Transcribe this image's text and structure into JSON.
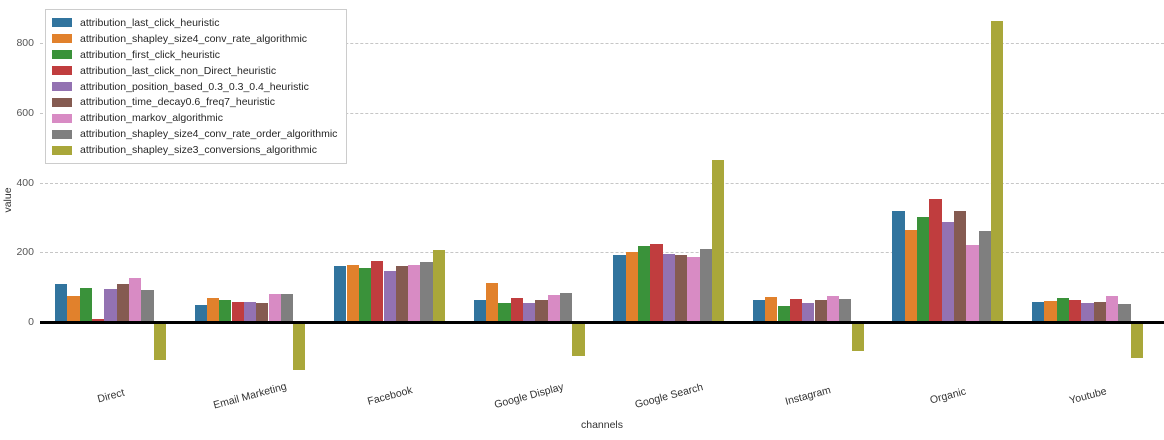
{
  "chart_data": {
    "type": "bar",
    "title": "",
    "xlabel": "channels",
    "ylabel": "value",
    "ylim": [
      -150,
      900
    ],
    "yticks": [
      0,
      200,
      400,
      600,
      800
    ],
    "grid": "horizontal-dashed",
    "legend_position": "upper-left",
    "categories": [
      "Direct",
      "Email Marketing",
      "Facebook",
      "Google Display",
      "Google Search",
      "Instagram",
      "Organic",
      "Youtube"
    ],
    "series": [
      {
        "name": "attribution_last_click_heuristic",
        "color": "#31749e",
        "values": [
          110,
          50,
          160,
          63,
          192,
          62,
          318,
          57
        ]
      },
      {
        "name": "attribution_shapley_size4_conv_rate_algorithmic",
        "color": "#e1812c",
        "values": [
          74,
          68,
          164,
          111,
          201,
          71,
          265,
          60
        ]
      },
      {
        "name": "attribution_first_click_heuristic",
        "color": "#3a923a",
        "values": [
          97,
          64,
          155,
          54,
          218,
          46,
          300,
          69
        ]
      },
      {
        "name": "attribution_last_click_non_Direct_heuristic",
        "color": "#c03d3e",
        "values": [
          8,
          57,
          175,
          69,
          225,
          65,
          352,
          62
        ]
      },
      {
        "name": "attribution_position_based_0.3_0.3_0.4_heuristic",
        "color": "#9372b2",
        "values": [
          95,
          58,
          146,
          56,
          195,
          55,
          288,
          54
        ]
      },
      {
        "name": "attribution_time_decay0.6_freq7_heuristic",
        "color": "#855b51",
        "values": [
          108,
          54,
          160,
          63,
          192,
          62,
          318,
          58
        ]
      },
      {
        "name": "attribution_markov_algorithmic",
        "color": "#d88bc4",
        "values": [
          126,
          81,
          165,
          78,
          187,
          75,
          220,
          75
        ]
      },
      {
        "name": "attribution_shapley_size4_conv_rate_order_algorithmic",
        "color": "#7f7f7f",
        "values": [
          92,
          81,
          173,
          84,
          209,
          65,
          262,
          51
        ]
      },
      {
        "name": "attribution_shapley_size3_conversions_algorithmic",
        "color": "#a9a73a",
        "values": [
          -108,
          -137,
          208,
          -97,
          466,
          -83,
          862,
          -104
        ]
      }
    ]
  }
}
